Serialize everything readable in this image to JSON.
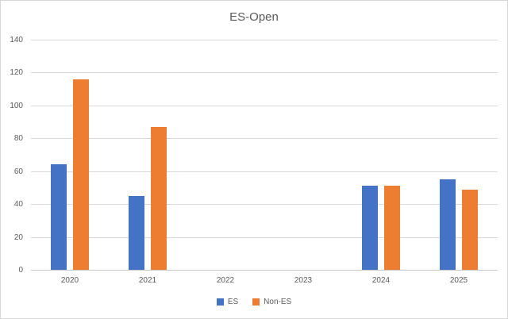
{
  "chart_data": {
    "type": "bar",
    "title": "ES-Open",
    "categories": [
      "2020",
      "2021",
      "2022",
      "2023",
      "2024",
      "2025"
    ],
    "series": [
      {
        "name": "ES",
        "color": "#4472C4",
        "values": [
          64,
          45,
          0,
          0,
          51,
          55
        ]
      },
      {
        "name": "Non-ES",
        "color": "#ED7D31",
        "values": [
          116,
          87,
          0,
          0,
          51,
          49
        ]
      }
    ],
    "xlabel": "",
    "ylabel": "",
    "ylim": [
      0,
      140
    ],
    "yticks": [
      0,
      20,
      40,
      60,
      80,
      100,
      120,
      140
    ],
    "grid": true,
    "legend_position": "bottom"
  },
  "colors": {
    "background": "#FFFFFF",
    "border": "#D7D7D7",
    "gridline": "#D9D9D9",
    "axis_line": "#C9C9C9",
    "text": "#595959"
  }
}
